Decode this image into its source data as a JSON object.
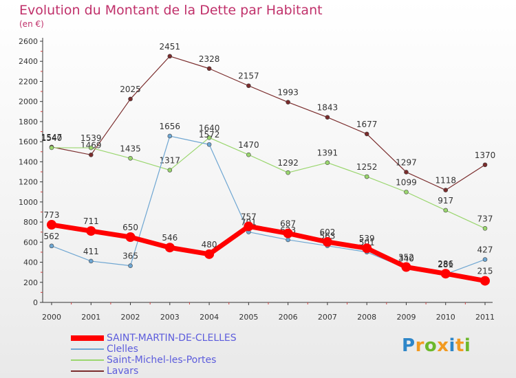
{
  "header": {
    "title": "Evolution du Montant de la Dette par Habitant",
    "subtitle": "(en €)"
  },
  "logo": {
    "text": "Proxiti",
    "colors": [
      "#2e86c8",
      "#f29a20",
      "#6cb82c",
      "#f29a20",
      "#2e86c8",
      "#f29a20",
      "#6cb82c"
    ]
  },
  "chart_data": {
    "type": "line",
    "title": "Evolution du Montant de la Dette par Habitant",
    "subtitle": "(en €)",
    "xlabel": "",
    "ylabel": "",
    "ylim": [
      0,
      2600
    ],
    "yticks": [
      0,
      200,
      400,
      600,
      800,
      1000,
      1200,
      1400,
      1600,
      1800,
      2000,
      2200,
      2400,
      2600
    ],
    "categories": [
      "2000",
      "2001",
      "2002",
      "2003",
      "2004",
      "2005",
      "2006",
      "2007",
      "2008",
      "2009",
      "2010",
      "2011"
    ],
    "grid": false,
    "legend_position": "bottom-left",
    "series": [
      {
        "name": "SAINT-MARTIN-DE-CLELLES",
        "color": "#ff0000",
        "values": [
          773,
          711,
          650,
          546,
          480,
          757,
          687,
          602,
          539,
          352,
          286,
          215
        ]
      },
      {
        "name": "Clelles",
        "color": "#6ea6d2",
        "values": [
          562,
          411,
          365,
          1656,
          1572,
          701,
          623,
          563,
          501,
          340,
          281,
          427
        ]
      },
      {
        "name": "Saint-Michel-les-Portes",
        "color": "#9ad66e",
        "values": [
          1540,
          1539,
          1435,
          1317,
          1640,
          1470,
          1292,
          1391,
          1252,
          1099,
          917,
          737
        ]
      },
      {
        "name": "Lavars",
        "color": "#7a2c2c",
        "values": [
          1547,
          1469,
          2025,
          2451,
          2328,
          2157,
          1993,
          1843,
          1677,
          1297,
          1118,
          1370
        ]
      }
    ]
  }
}
